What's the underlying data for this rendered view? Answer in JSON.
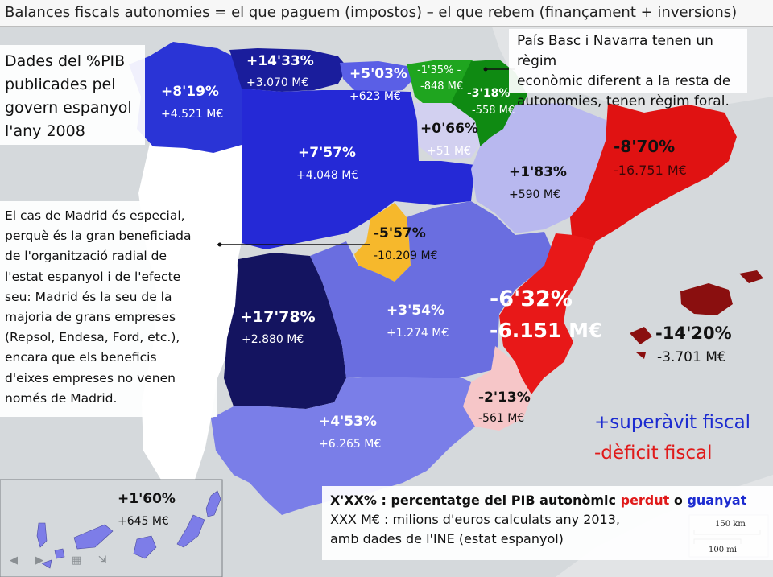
{
  "title": "Balances fiscals autonomies = el que paguem (impostos) – el que rebem (finançament + inversions)",
  "notes": {
    "source_lines": [
      "Dades del %PIB",
      "publicades pel",
      "govern espanyol",
      "l'any 2008"
    ],
    "foral_lines": [
      "País Basc i Navarra tenen un règim",
      "econòmic diferent a la resta de",
      "autonomies, tenen règim foral."
    ],
    "madrid_lines": [
      "El cas de Madrid és especial,",
      "perquè és la gran beneficiada",
      "de l'organització radial de",
      "l'estat espanyol i de l'efecte",
      "seu: Madrid és la seu de la",
      "majoria de grans empreses",
      "(Repsol, Endesa, Ford, etc.),",
      "encara que els beneficis",
      "d'eixes empreses no venen",
      "només de Madrid."
    ]
  },
  "regions": [
    {
      "id": "galicia",
      "pct": "+8'19%",
      "value": "+4.521 M€",
      "color": "#2a34d6"
    },
    {
      "id": "asturias",
      "pct": "+14'33%",
      "value": "+3.070 M€",
      "color": "#1a1d9c"
    },
    {
      "id": "cantabria",
      "pct": "+5'03%",
      "value": "+623 M€",
      "color": "#5a5fe6"
    },
    {
      "id": "euskadi",
      "pct": "-1'35% -",
      "value": "-848 M€",
      "color": "#1fa51f"
    },
    {
      "id": "navarra",
      "pct": "-3'18%",
      "value": "-558 M€",
      "color": "#0f8a12"
    },
    {
      "id": "rioja",
      "pct": "+0'66%",
      "value": "+51 M€",
      "color": "#d2d0f0"
    },
    {
      "id": "castilla_leon",
      "pct": "+7'57%",
      "value": "+4.048 M€",
      "color": "#2529d6"
    },
    {
      "id": "aragon",
      "pct": "+1'83%",
      "value": "+590 M€",
      "color": "#b8b8ef"
    },
    {
      "id": "catalunya",
      "pct": "-8'70%",
      "value": "-16.751 M€",
      "color": "#e01212"
    },
    {
      "id": "madrid",
      "pct": "-5'57%",
      "value": "-10.209 M€",
      "color": "#f6b82c"
    },
    {
      "id": "extremadura",
      "pct": "+17'78%",
      "value": "+2.880 M€",
      "color": "#141460"
    },
    {
      "id": "castilla_mancha",
      "pct": "+3'54%",
      "value": "+1.274 M€",
      "color": "#6a6ee0"
    },
    {
      "id": "valencia",
      "pct": "-6'32%",
      "value": "-6.151 M€",
      "color": "#e81818"
    },
    {
      "id": "murcia",
      "pct": "-2'13%",
      "value": "-561 M€",
      "color": "#f6c6c8"
    },
    {
      "id": "andalucia",
      "pct": "+4'53%",
      "value": "+6.265 M€",
      "color": "#7a7ee8"
    },
    {
      "id": "balears",
      "pct": "-14'20%",
      "value": "-3.701 M€",
      "color": "#8a0f0f"
    },
    {
      "id": "canarias",
      "pct": "+1'60%",
      "value": "+645 M€",
      "color": "#7d7de8"
    }
  ],
  "legend": {
    "surplus": "+superàvit fiscal",
    "deficit": "-dèficit fiscal",
    "surplus_color": "#1c2bd0",
    "deficit_color": "#e01a1a"
  },
  "key": {
    "pct_prefix": "X'XX% : percentatge del PIB autonòmic",
    "lost": "perdut",
    "or": "o",
    "gained": "guanyat",
    "line2": "XXX M€ : milions d'euros calculats any 2013,",
    "line3": "amb dades de l'INE (estat espanyol)"
  },
  "scale": {
    "km": "150 km",
    "mi": "100 mi"
  },
  "footer_icons": [
    "back-icon",
    "forward-icon",
    "slides-icon",
    "expand-icon"
  ]
}
